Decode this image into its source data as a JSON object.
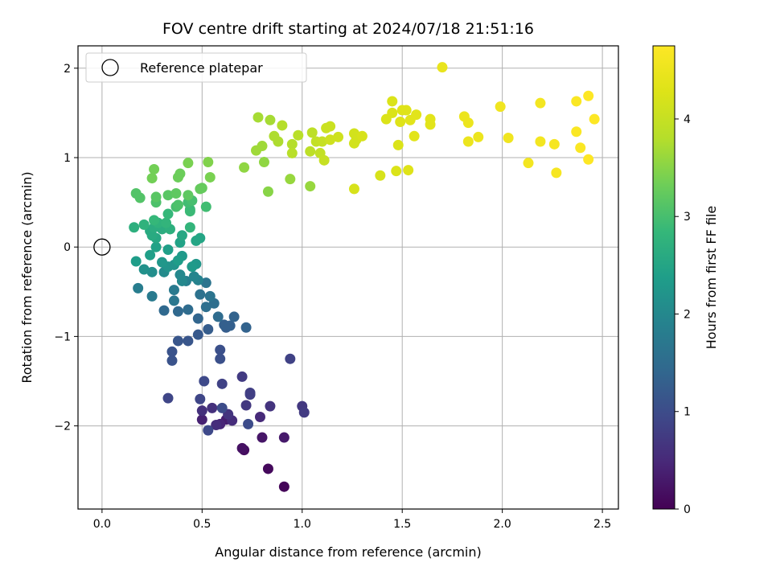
{
  "chart_data": {
    "type": "scatter",
    "title": "FOV centre drift starting at 2024/07/18 21:51:16",
    "xlabel": "Angular distance from reference (arcmin)",
    "ylabel": "Rotation from reference (arcmin)",
    "xlim": [
      -0.12,
      2.58
    ],
    "ylim": [
      -2.93,
      2.25
    ],
    "xticks": [
      0.0,
      0.5,
      1.0,
      1.5,
      2.0,
      2.5
    ],
    "xtick_labels": [
      "0.0",
      "0.5",
      "1.0",
      "1.5",
      "2.0",
      "2.5"
    ],
    "yticks": [
      -2,
      -1,
      0,
      1,
      2
    ],
    "ytick_labels": [
      "−2",
      "−1",
      "0",
      "1",
      "2"
    ],
    "grid": true,
    "legend": {
      "position": "top-left",
      "entries": [
        "Reference platepar"
      ]
    },
    "reference_point": {
      "x": 0.0,
      "y": 0.0,
      "label": "Reference platepar"
    },
    "colorbar": {
      "label": "Hours from first FF file",
      "colormap": "viridis",
      "range": [
        0,
        4.75
      ],
      "ticks": [
        0,
        1,
        2,
        3,
        4
      ],
      "tick_labels": [
        "0",
        "1",
        "2",
        "3",
        "4"
      ]
    },
    "points": [
      [
        0.91,
        -2.68,
        0.05
      ],
      [
        0.83,
        -2.48,
        0.1
      ],
      [
        0.71,
        -2.27,
        0.15
      ],
      [
        0.7,
        -2.25,
        0.2
      ],
      [
        0.8,
        -2.13,
        0.25
      ],
      [
        0.91,
        -2.13,
        0.3
      ],
      [
        0.62,
        -1.93,
        0.35
      ],
      [
        0.5,
        -1.93,
        0.4
      ],
      [
        0.59,
        -1.98,
        0.45
      ],
      [
        0.79,
        -1.9,
        0.5
      ],
      [
        0.57,
        -1.99,
        0.55
      ],
      [
        0.65,
        -1.94,
        0.55
      ],
      [
        0.5,
        -1.83,
        0.6
      ],
      [
        0.55,
        -1.8,
        0.6
      ],
      [
        0.63,
        -1.87,
        0.65
      ],
      [
        0.84,
        -1.78,
        0.65
      ],
      [
        0.72,
        -1.77,
        0.7
      ],
      [
        1.0,
        -1.78,
        0.7
      ],
      [
        1.01,
        -1.85,
        0.75
      ],
      [
        0.7,
        -1.45,
        0.75
      ],
      [
        0.74,
        -1.63,
        0.8
      ],
      [
        0.74,
        -1.65,
        0.8
      ],
      [
        0.6,
        -1.53,
        0.85
      ],
      [
        0.94,
        -1.25,
        0.85
      ],
      [
        0.33,
        -1.69,
        0.9
      ],
      [
        0.49,
        -1.7,
        0.9
      ],
      [
        0.51,
        -1.5,
        0.95
      ],
      [
        0.53,
        -2.05,
        0.95
      ],
      [
        0.6,
        -1.8,
        1.0
      ],
      [
        0.73,
        -1.98,
        1.0
      ],
      [
        0.59,
        -1.15,
        1.05
      ],
      [
        0.59,
        -1.25,
        1.05
      ],
      [
        0.35,
        -1.17,
        1.1
      ],
      [
        0.35,
        -1.27,
        1.1
      ],
      [
        0.38,
        -1.05,
        1.15
      ],
      [
        0.43,
        -1.05,
        1.15
      ],
      [
        0.48,
        -0.98,
        1.2
      ],
      [
        0.53,
        -0.92,
        1.25
      ],
      [
        0.62,
        -0.9,
        1.25
      ],
      [
        0.64,
        -0.88,
        1.3
      ],
      [
        0.61,
        -0.87,
        1.3
      ],
      [
        0.72,
        -0.9,
        1.35
      ],
      [
        0.66,
        -0.78,
        1.35
      ],
      [
        0.48,
        -0.8,
        1.4
      ],
      [
        0.38,
        -0.72,
        1.45
      ],
      [
        0.31,
        -0.71,
        1.45
      ],
      [
        0.43,
        -0.7,
        1.5
      ],
      [
        0.58,
        -0.78,
        1.5
      ],
      [
        0.52,
        -0.67,
        1.55
      ],
      [
        0.56,
        -0.63,
        1.55
      ],
      [
        0.49,
        -0.53,
        1.6
      ],
      [
        0.54,
        -0.55,
        1.65
      ],
      [
        0.52,
        -0.4,
        1.65
      ],
      [
        0.36,
        -0.6,
        1.7
      ],
      [
        0.36,
        -0.48,
        1.75
      ],
      [
        0.25,
        -0.55,
        1.75
      ],
      [
        0.18,
        -0.46,
        1.8
      ],
      [
        0.42,
        -0.38,
        1.85
      ],
      [
        0.48,
        -0.37,
        1.9
      ],
      [
        0.46,
        -0.33,
        1.95
      ],
      [
        0.4,
        -0.38,
        2.0
      ],
      [
        0.39,
        -0.31,
        2.0
      ],
      [
        0.31,
        -0.28,
        2.05
      ],
      [
        0.25,
        -0.28,
        2.1
      ],
      [
        0.21,
        -0.25,
        2.15
      ],
      [
        0.33,
        -0.22,
        2.2
      ],
      [
        0.36,
        -0.2,
        2.2
      ],
      [
        0.3,
        -0.17,
        2.25
      ],
      [
        0.47,
        -0.19,
        2.25
      ],
      [
        0.45,
        -0.22,
        2.3
      ],
      [
        0.4,
        -0.1,
        2.3
      ],
      [
        0.38,
        -0.15,
        2.35
      ],
      [
        0.17,
        -0.16,
        2.35
      ],
      [
        0.24,
        -0.09,
        2.4
      ],
      [
        0.33,
        -0.03,
        2.4
      ],
      [
        0.27,
        0.0,
        2.45
      ],
      [
        0.39,
        0.05,
        2.45
      ],
      [
        0.47,
        0.07,
        2.5
      ],
      [
        0.49,
        0.1,
        2.5
      ],
      [
        0.4,
        0.13,
        2.55
      ],
      [
        0.27,
        0.1,
        2.55
      ],
      [
        0.25,
        0.13,
        2.6
      ],
      [
        0.24,
        0.18,
        2.6
      ],
      [
        0.3,
        0.2,
        2.65
      ],
      [
        0.26,
        0.22,
        2.65
      ],
      [
        0.34,
        0.2,
        2.7
      ],
      [
        0.16,
        0.22,
        2.7
      ],
      [
        0.21,
        0.25,
        2.75
      ],
      [
        0.28,
        0.27,
        2.75
      ],
      [
        0.44,
        0.22,
        2.8
      ],
      [
        0.32,
        0.27,
        2.8
      ],
      [
        0.26,
        0.3,
        2.85
      ],
      [
        0.33,
        0.37,
        2.85
      ],
      [
        0.44,
        0.42,
        2.9
      ],
      [
        0.44,
        0.4,
        2.9
      ],
      [
        0.52,
        0.45,
        2.95
      ],
      [
        0.43,
        0.5,
        2.95
      ],
      [
        0.45,
        0.52,
        3.0
      ],
      [
        0.37,
        0.45,
        3.0
      ],
      [
        0.38,
        0.47,
        3.05
      ],
      [
        0.27,
        0.5,
        3.05
      ],
      [
        0.19,
        0.55,
        3.1
      ],
      [
        0.17,
        0.6,
        3.1
      ],
      [
        0.27,
        0.56,
        3.15
      ],
      [
        0.33,
        0.58,
        3.15
      ],
      [
        0.37,
        0.6,
        3.2
      ],
      [
        0.43,
        0.58,
        3.2
      ],
      [
        0.49,
        0.65,
        3.25
      ],
      [
        0.5,
        0.66,
        3.25
      ],
      [
        0.38,
        0.78,
        3.3
      ],
      [
        0.39,
        0.82,
        3.3
      ],
      [
        0.25,
        0.77,
        3.35
      ],
      [
        0.26,
        0.87,
        3.35
      ],
      [
        0.43,
        0.94,
        3.4
      ],
      [
        0.54,
        0.78,
        3.4
      ],
      [
        0.53,
        0.95,
        3.45
      ],
      [
        0.83,
        0.62,
        3.5
      ],
      [
        0.71,
        0.89,
        3.55
      ],
      [
        0.81,
        0.95,
        3.55
      ],
      [
        0.94,
        0.76,
        3.6
      ],
      [
        1.04,
        0.68,
        3.6
      ],
      [
        0.77,
        1.08,
        3.65
      ],
      [
        0.8,
        1.13,
        3.65
      ],
      [
        0.78,
        1.45,
        3.7
      ],
      [
        0.84,
        1.42,
        3.7
      ],
      [
        0.88,
        1.18,
        3.75
      ],
      [
        0.86,
        1.24,
        3.75
      ],
      [
        0.9,
        1.36,
        3.8
      ],
      [
        0.95,
        1.15,
        3.8
      ],
      [
        0.98,
        1.25,
        3.85
      ],
      [
        0.95,
        1.05,
        3.85
      ],
      [
        1.04,
        1.07,
        3.9
      ],
      [
        1.05,
        1.28,
        3.9
      ],
      [
        1.07,
        1.18,
        3.95
      ],
      [
        1.09,
        1.05,
        3.95
      ],
      [
        1.1,
        1.18,
        4.0
      ],
      [
        1.11,
        0.97,
        4.0
      ],
      [
        1.12,
        1.33,
        4.05
      ],
      [
        1.14,
        1.35,
        4.05
      ],
      [
        1.14,
        1.2,
        4.1
      ],
      [
        1.18,
        1.23,
        4.1
      ],
      [
        1.26,
        1.16,
        4.15
      ],
      [
        1.26,
        1.27,
        4.15
      ],
      [
        1.27,
        1.2,
        4.15
      ],
      [
        1.3,
        1.24,
        4.2
      ],
      [
        1.26,
        0.65,
        4.2
      ],
      [
        1.39,
        0.8,
        4.2
      ],
      [
        1.42,
        1.43,
        4.25
      ],
      [
        1.45,
        1.5,
        4.25
      ],
      [
        1.45,
        1.63,
        4.25
      ],
      [
        1.47,
        0.85,
        4.25
      ],
      [
        1.48,
        1.14,
        4.25
      ],
      [
        1.5,
        1.53,
        4.3
      ],
      [
        1.49,
        1.4,
        4.3
      ],
      [
        1.52,
        1.53,
        4.3
      ],
      [
        1.53,
        0.86,
        4.3
      ],
      [
        1.54,
        1.42,
        4.35
      ],
      [
        1.56,
        1.24,
        4.35
      ],
      [
        1.57,
        1.48,
        4.35
      ],
      [
        1.64,
        1.43,
        4.35
      ],
      [
        1.64,
        1.37,
        4.35
      ],
      [
        1.7,
        2.01,
        4.45
      ],
      [
        1.81,
        1.46,
        4.5
      ],
      [
        1.83,
        1.39,
        4.5
      ],
      [
        1.83,
        1.18,
        4.5
      ],
      [
        1.88,
        1.23,
        4.5
      ],
      [
        1.99,
        1.57,
        4.55
      ],
      [
        2.03,
        1.22,
        4.55
      ],
      [
        2.13,
        0.94,
        4.6
      ],
      [
        2.19,
        1.18,
        4.6
      ],
      [
        2.19,
        1.61,
        4.6
      ],
      [
        2.26,
        1.15,
        4.65
      ],
      [
        2.27,
        0.83,
        4.65
      ],
      [
        2.37,
        1.29,
        4.7
      ],
      [
        2.37,
        1.63,
        4.7
      ],
      [
        2.39,
        1.11,
        4.7
      ],
      [
        2.43,
        1.69,
        4.75
      ],
      [
        2.43,
        0.98,
        4.75
      ],
      [
        2.46,
        1.43,
        4.75
      ]
    ]
  }
}
